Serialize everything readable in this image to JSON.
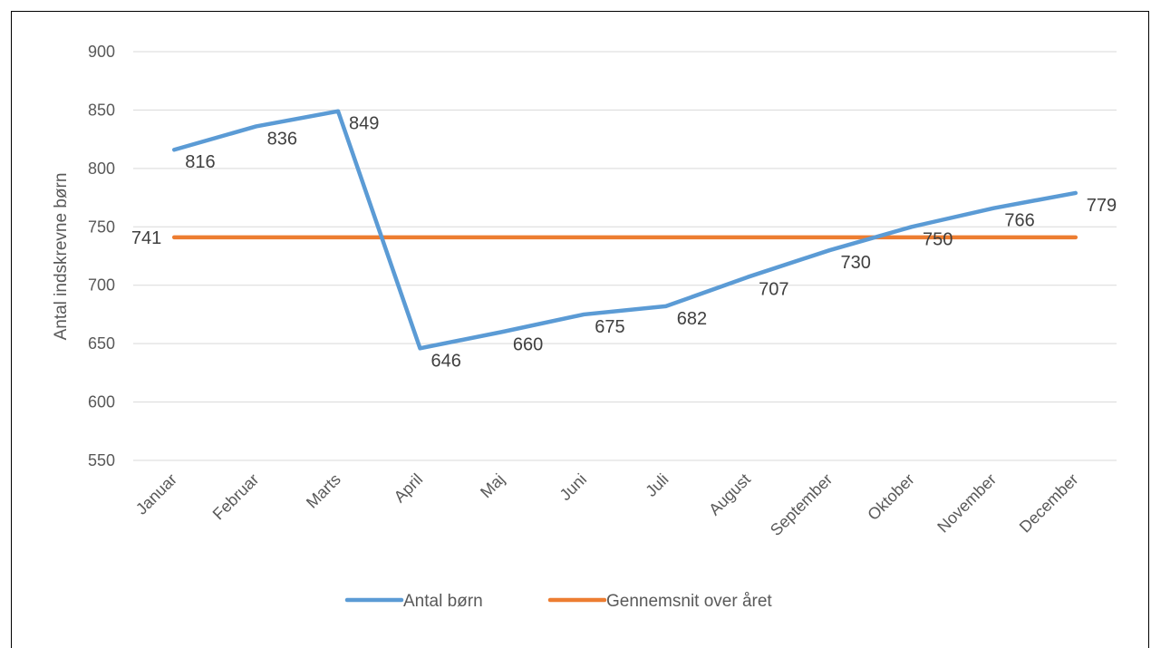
{
  "chart_data": {
    "type": "line",
    "title": "",
    "xlabel": "",
    "ylabel": "Antal indskrevne børn",
    "categories": [
      "Januar",
      "Februar",
      "Marts",
      "April",
      "Maj",
      "Juni",
      "Juli",
      "August",
      "September",
      "Oktober",
      "November",
      "December"
    ],
    "ylim": [
      550,
      900
    ],
    "yticks": [
      550,
      600,
      650,
      700,
      750,
      800,
      850,
      900
    ],
    "grid": true,
    "legend_position": "bottom",
    "series": [
      {
        "name": "Antal børn",
        "color": "#5B9BD5",
        "values": [
          816,
          836,
          849,
          646,
          660,
          675,
          682,
          707,
          730,
          750,
          766,
          779
        ],
        "labels": [
          "816",
          "836",
          "849",
          "646",
          "660",
          "675",
          "682",
          "707",
          "730",
          "750",
          "766",
          "779"
        ]
      },
      {
        "name": "Gennemsnit over året",
        "color": "#ED7D31",
        "values": [
          741,
          741,
          741,
          741,
          741,
          741,
          741,
          741,
          741,
          741,
          741,
          741
        ],
        "labels": [
          "741"
        ]
      }
    ]
  }
}
